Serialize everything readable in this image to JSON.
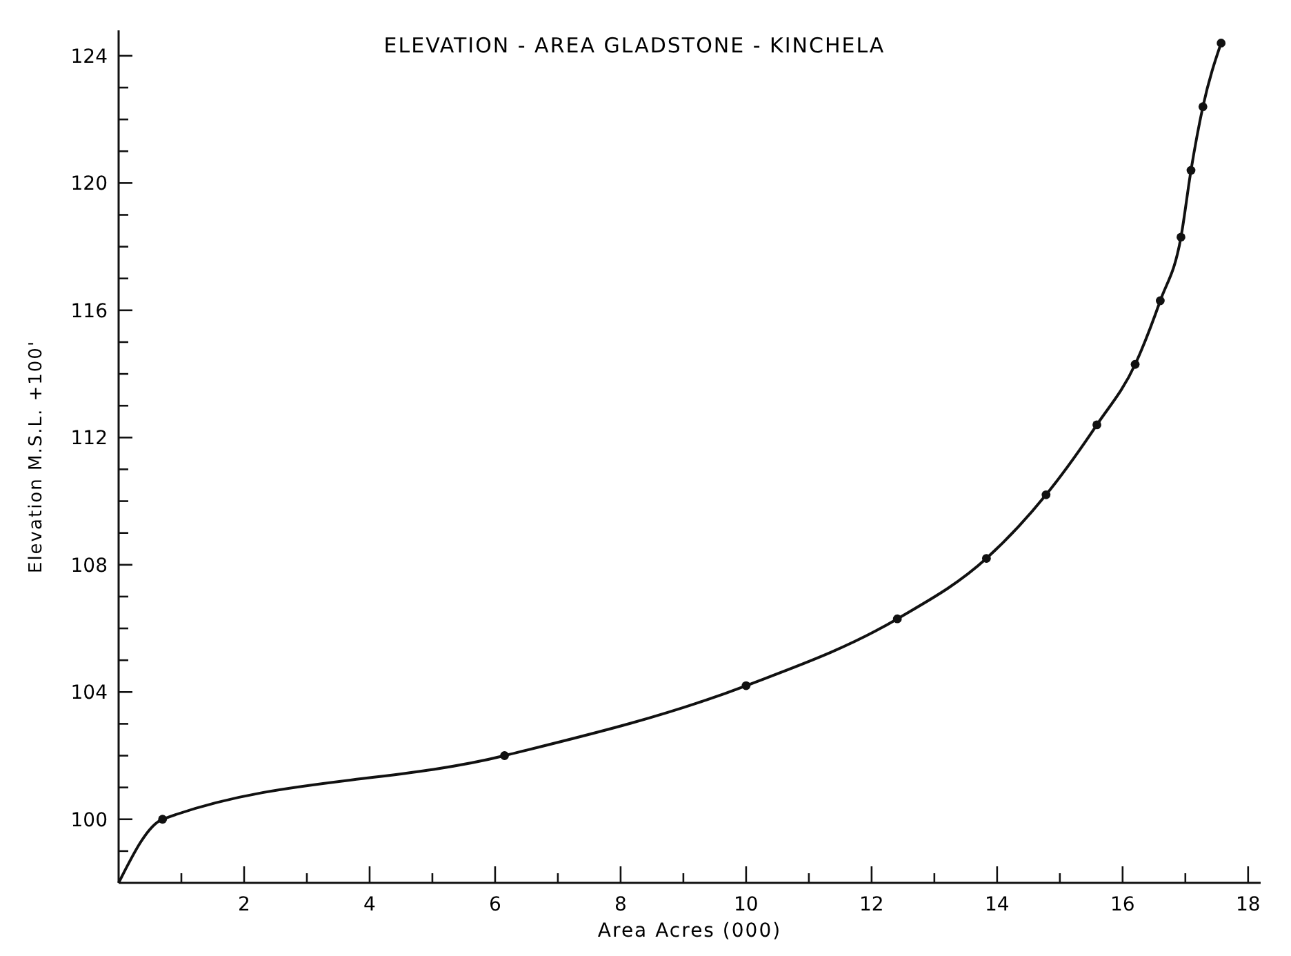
{
  "chart_data": {
    "type": "line",
    "title": "ELEVATION - AREA   GLADSTONE - KINCHELA",
    "xlabel": "Area  Acres  (000)",
    "ylabel": "Elevation  M.S.L.  +100'",
    "xlim": [
      0,
      18.2
    ],
    "ylim": [
      98,
      124.8
    ],
    "xticks": [
      {
        "value": 1,
        "label": null
      },
      2,
      {
        "value": 3,
        "label": null
      },
      4,
      {
        "value": 5,
        "label": null
      },
      6,
      {
        "value": 7,
        "label": null
      },
      8,
      {
        "value": 9,
        "label": null
      },
      10,
      {
        "value": 11,
        "label": null
      },
      12,
      {
        "value": 13,
        "label": null
      },
      14,
      {
        "value": 15,
        "label": null
      },
      16,
      {
        "value": 17,
        "label": null
      },
      18
    ],
    "yticks": [
      {
        "value": 99,
        "label": null
      },
      100,
      {
        "value": 101,
        "label": null
      },
      {
        "value": 102,
        "label": null
      },
      {
        "value": 103,
        "label": null
      },
      104,
      {
        "value": 105,
        "label": null
      },
      {
        "value": 106,
        "label": null
      },
      {
        "value": 107,
        "label": null
      },
      108,
      {
        "value": 109,
        "label": null
      },
      {
        "value": 110,
        "label": null
      },
      {
        "value": 111,
        "label": null
      },
      112,
      {
        "value": 113,
        "label": null
      },
      {
        "value": 114,
        "label": null
      },
      {
        "value": 115,
        "label": null
      },
      116,
      {
        "value": 117,
        "label": null
      },
      {
        "value": 118,
        "label": null
      },
      {
        "value": 119,
        "label": null
      },
      120,
      {
        "value": 121,
        "label": null
      },
      {
        "value": 122,
        "label": null
      },
      {
        "value": 123,
        "label": null
      },
      124
    ],
    "grid": false,
    "series": [
      {
        "color": "#111111",
        "marker": "none",
        "x": [
          0,
          0.7,
          6.15,
          10,
          12.41,
          13.83,
          14.78,
          15.59,
          16.2,
          16.6,
          16.93,
          17.09,
          17.28,
          17.57
        ],
        "values": [
          98,
          100,
          102,
          104.2,
          106.3,
          108.2,
          110.2,
          112.4,
          114.3,
          116.3,
          118.3,
          120.4,
          122.4,
          124.4
        ]
      },
      {
        "type": "scatter",
        "color": "#111111",
        "marker": "circle",
        "x": [
          0.7,
          6.15,
          10,
          12.41,
          13.83,
          14.78,
          15.59,
          16.2,
          16.6,
          16.93,
          17.09,
          17.28,
          17.57
        ],
        "values": [
          100,
          102,
          104.2,
          106.3,
          108.2,
          110.2,
          112.4,
          114.3,
          116.3,
          118.3,
          120.4,
          122.4,
          124.4
        ]
      }
    ]
  }
}
